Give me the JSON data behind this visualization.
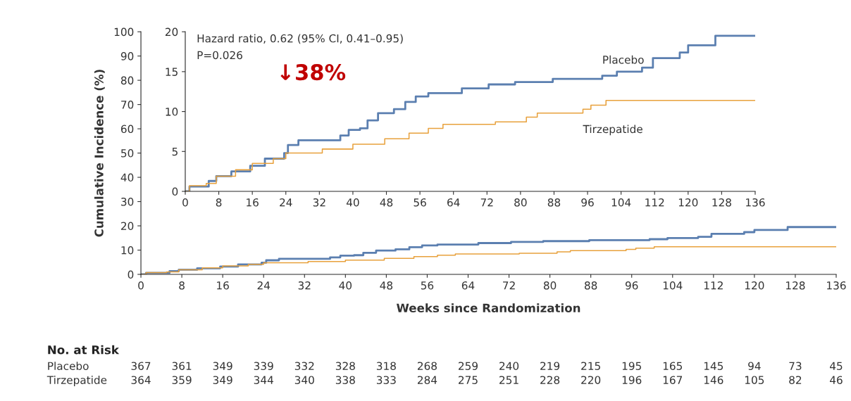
{
  "chart_data": [
    {
      "type": "step",
      "xlabel": "Weeks since Randomization",
      "ylabel": "Cumulative Incidence (%)",
      "xlim": [
        0,
        136
      ],
      "ylim": [
        0,
        100
      ],
      "xticks": [
        0,
        8,
        16,
        24,
        32,
        40,
        48,
        56,
        64,
        72,
        80,
        88,
        96,
        104,
        112,
        120,
        128,
        136
      ],
      "yticks": [
        0,
        10,
        20,
        30,
        40,
        50,
        60,
        70,
        80,
        90,
        100
      ],
      "grid": false,
      "legend": false,
      "series": [
        {
          "color": "#5b7fb0",
          "x": [
            0,
            1,
            5.6,
            7.4,
            11,
            15.5,
            19,
            23.6,
            24.5,
            27,
            33.6,
            37,
            39,
            41.7,
            43.5,
            46,
            49.8,
            52.5,
            55,
            58,
            66,
            72.4,
            78.7,
            87.7,
            99.5,
            103,
            109,
            111.6,
            118,
            120,
            126.5,
            136
          ],
          "values": [
            0,
            0.6,
            1.3,
            1.9,
            2.5,
            3.2,
            4.1,
            4.8,
            5.8,
            6.4,
            6.4,
            7.0,
            7.7,
            7.9,
            8.9,
            9.8,
            10.3,
            11.2,
            11.9,
            12.3,
            12.9,
            13.4,
            13.7,
            14.1,
            14.5,
            15.0,
            15.5,
            16.7,
            17.4,
            18.3,
            19.5,
            19.5
          ]
        },
        {
          "color": "#e8a13c",
          "x": [
            0,
            1,
            5,
            7.4,
            12,
            16,
            21,
            24,
            32.7,
            40,
            47.6,
            53.4,
            58,
            61.5,
            74,
            81.4,
            84,
            94.9,
            96.8,
            100.4,
            136
          ],
          "values": [
            0,
            0.7,
            1.0,
            1.9,
            2.7,
            3.5,
            4.1,
            4.8,
            5.3,
            5.9,
            6.6,
            7.3,
            7.9,
            8.4,
            8.7,
            9.3,
            9.8,
            10.3,
            10.8,
            11.4,
            11.4
          ]
        }
      ]
    },
    {
      "type": "step",
      "xlim": [
        0,
        136
      ],
      "ylim": [
        0,
        20
      ],
      "xticks": [
        0,
        8,
        16,
        24,
        32,
        40,
        48,
        56,
        64,
        72,
        80,
        88,
        96,
        104,
        112,
        120,
        128,
        136
      ],
      "yticks": [
        0,
        5,
        10,
        15,
        20
      ],
      "grid": false,
      "legend": false,
      "annotations": [
        "Hazard ratio, 0.62 (95% CI, 0.41–0.95)",
        "P=0.026",
        "↓38%"
      ],
      "series": [
        {
          "name": "Placebo",
          "color": "#5b7fb0",
          "x": [
            0,
            1,
            5.6,
            7.4,
            11,
            15.5,
            19,
            23.6,
            24.5,
            27,
            33.6,
            37,
            39,
            41.7,
            43.5,
            46,
            49.8,
            52.5,
            55,
            58,
            66,
            72.4,
            78.7,
            87.7,
            99.5,
            103,
            109,
            111.6,
            118,
            120,
            126.5,
            136
          ],
          "values": [
            0,
            0.6,
            1.3,
            1.9,
            2.5,
            3.2,
            4.1,
            4.8,
            5.8,
            6.4,
            6.4,
            7.0,
            7.7,
            7.9,
            8.9,
            9.8,
            10.3,
            11.2,
            11.9,
            12.3,
            12.9,
            13.4,
            13.7,
            14.1,
            14.5,
            15.0,
            15.5,
            16.7,
            17.4,
            18.3,
            19.5,
            19.5
          ]
        },
        {
          "name": "Tirzepatide",
          "color": "#e8a13c",
          "x": [
            0,
            1,
            5,
            7.4,
            12,
            16,
            21,
            24,
            32.7,
            40,
            47.6,
            53.4,
            58,
            61.5,
            74,
            81.4,
            84,
            94.9,
            96.8,
            100.4,
            136
          ],
          "values": [
            0,
            0.7,
            1.0,
            1.9,
            2.7,
            3.5,
            4.1,
            4.8,
            5.3,
            5.9,
            6.6,
            7.3,
            7.9,
            8.4,
            8.7,
            9.3,
            9.8,
            10.3,
            10.8,
            11.4,
            11.4
          ]
        }
      ]
    },
    {
      "type": "other",
      "title": "No. at Risk",
      "annotations": [
        "Placebo",
        "367",
        "361",
        "349",
        "339",
        "332",
        "328",
        "318",
        "268",
        "259",
        "240",
        "219",
        "215",
        "195",
        "165",
        "145",
        "94",
        "73",
        "45",
        "Tirzepatide",
        "364",
        "359",
        "349",
        "344",
        "340",
        "338",
        "333",
        "284",
        "275",
        "251",
        "228",
        "220",
        "196",
        "167",
        "146",
        "105",
        "82",
        "46"
      ]
    }
  ]
}
